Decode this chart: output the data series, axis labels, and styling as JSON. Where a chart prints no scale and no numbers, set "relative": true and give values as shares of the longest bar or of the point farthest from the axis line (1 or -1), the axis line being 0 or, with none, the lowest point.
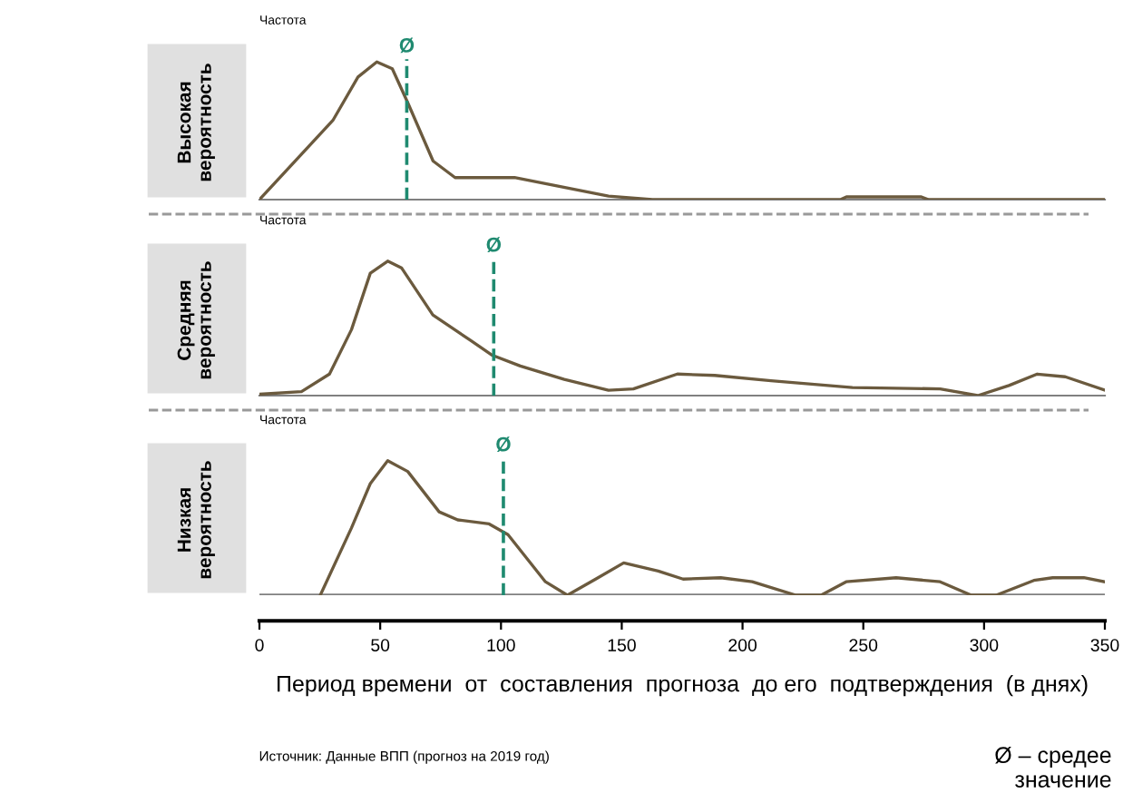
{
  "chart_data": [
    {
      "type": "line",
      "title": "Высокая\nвероятность",
      "ylabel": "Частота",
      "relative": true,
      "xlim": [
        0,
        350
      ],
      "tick_labels": false,
      "color": "#6b5a3e",
      "marker": "none",
      "line_style": "solid",
      "x": [
        0,
        30.4,
        40.8,
        48.6,
        55,
        61.5,
        71.9,
        81,
        105.6,
        144.5,
        162.7,
        240.5,
        243,
        274,
        277,
        350
      ],
      "values": [
        0,
        0.575,
        0.89,
        1.0,
        0.95,
        0.7,
        0.28,
        0.16,
        0.16,
        0.025,
        0,
        0,
        0.02,
        0.02,
        0,
        0
      ],
      "ref_lines": [
        {
          "axis": "x",
          "value": 61,
          "label": "Ø",
          "color": "#1f8a70",
          "line_style": "dashed"
        }
      ]
    },
    {
      "type": "line",
      "title": "Средняя\nвероятность",
      "ylabel": "Частота",
      "relative": true,
      "xlim": [
        0,
        350
      ],
      "tick_labels": false,
      "color": "#6b5a3e",
      "marker": "none",
      "line_style": "solid",
      "x": [
        0,
        17.4,
        29,
        38.1,
        45.9,
        53.1,
        58.8,
        71.8,
        87.4,
        96.4,
        108,
        126.2,
        144.5,
        154.8,
        173,
        188.5,
        211.8,
        245.5,
        281.8,
        297.4,
        310.3,
        322,
        333.6,
        350
      ],
      "values": [
        0.01,
        0.03,
        0.16,
        0.49,
        0.91,
        1.0,
        0.95,
        0.6,
        0.41,
        0.3,
        0.22,
        0.12,
        0.04,
        0.05,
        0.16,
        0.15,
        0.11,
        0.06,
        0.05,
        0,
        0.075,
        0.16,
        0.14,
        0.04
      ],
      "ref_lines": [
        {
          "axis": "x",
          "value": 97,
          "label": "Ø",
          "color": "#1f8a70",
          "line_style": "dashed"
        }
      ]
    },
    {
      "type": "line",
      "title": "Низкая\nвероятность",
      "ylabel": "Частота",
      "relative": true,
      "xlim": [
        0,
        350
      ],
      "xticks": [
        0,
        50,
        100,
        150,
        200,
        250,
        300,
        350
      ],
      "tick_labels": "x",
      "color": "#6b5a3e",
      "marker": "none",
      "line_style": "solid",
      "xlabel": "Период времени  от  составления  прогноза  до его  подтверждения  (в днях)",
      "x": [
        25.2,
        38.1,
        45.9,
        53.1,
        61.4,
        74.4,
        82.1,
        95.1,
        102.9,
        118.4,
        127.5,
        139.2,
        150.8,
        165.1,
        175.4,
        191,
        204,
        222.1,
        232.5,
        242.9,
        263.6,
        281.8,
        294.7,
        305,
        320.6,
        328.4,
        341.3,
        350
      ],
      "values": [
        0,
        0.5,
        0.83,
        1.0,
        0.92,
        0.62,
        0.56,
        0.53,
        0.45,
        0.1,
        0,
        0.12,
        0.24,
        0.18,
        0.12,
        0.13,
        0.1,
        0,
        0,
        0.1,
        0.13,
        0.1,
        0,
        0,
        0.11,
        0.13,
        0.13,
        0.1
      ],
      "ref_lines": [
        {
          "axis": "x",
          "value": 101,
          "label": "Ø",
          "color": "#1f8a70",
          "line_style": "dashed"
        }
      ],
      "annotations": [
        "Источник: Данные ВПП (прогноз на 2019 год)",
        "Ø – средее\nзначение"
      ]
    }
  ]
}
